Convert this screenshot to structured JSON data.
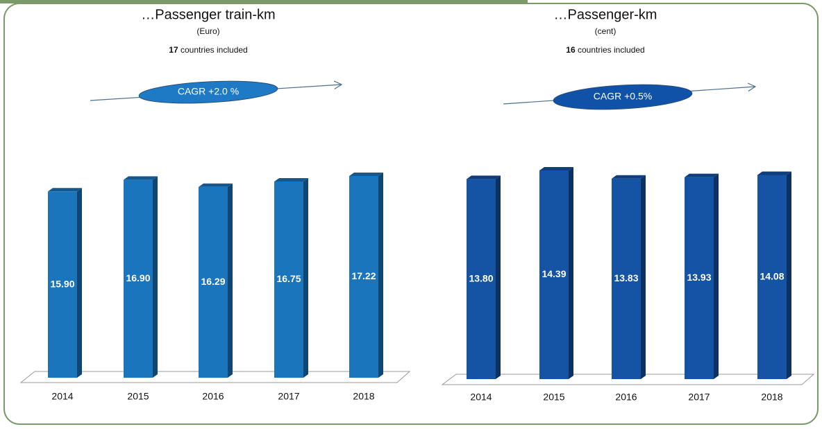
{
  "chart_data": [
    {
      "type": "bar",
      "title": "…Passenger train-km",
      "subtitle": "(Euro)",
      "note_count": "17",
      "note_text": "countries included",
      "annotation": "CAGR +2.0 %",
      "categories": [
        "2014",
        "2015",
        "2016",
        "2017",
        "2018"
      ],
      "values": [
        15.9,
        16.9,
        16.29,
        16.75,
        17.22
      ],
      "value_labels": [
        "15.90",
        "16.90",
        "16.29",
        "16.75",
        "17.22"
      ],
      "color": "#1b75bc"
    },
    {
      "type": "bar",
      "title": "…Passenger-km",
      "subtitle": "(cent)",
      "note_count": "16",
      "note_text": "countries included",
      "annotation": "CAGR +0.5%",
      "categories": [
        "2014",
        "2015",
        "2016",
        "2017",
        "2018"
      ],
      "values": [
        13.8,
        14.39,
        13.83,
        13.93,
        14.08
      ],
      "value_labels": [
        "13.80",
        "14.39",
        "13.83",
        "13.93",
        "14.08"
      ],
      "color": "#1553a4"
    }
  ]
}
